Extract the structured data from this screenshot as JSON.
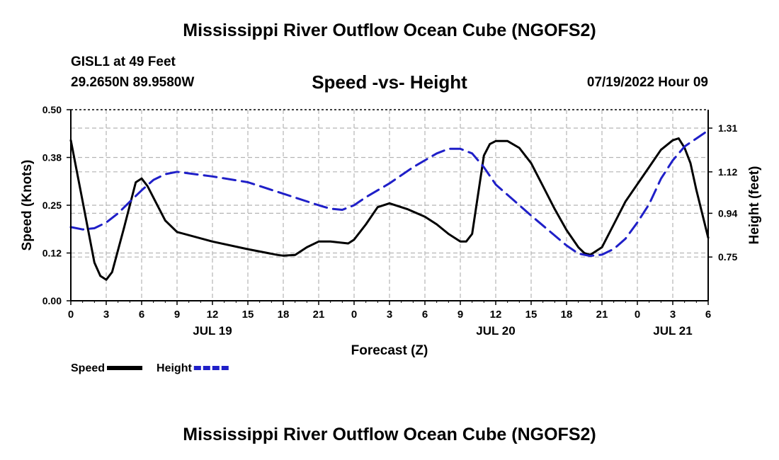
{
  "page": {
    "title": "Mississippi River Outflow Ocean Cube (NGOFS2)",
    "station_name": "GISL1 at 49 Feet",
    "station_coords": "29.2650N  89.9580W",
    "subtitle": "Speed -vs- Height",
    "datetime": "07/19/2022 Hour 09",
    "footer_title": "Mississippi River Outflow Ocean Cube (NGOFS2)"
  },
  "chart_data": {
    "type": "line",
    "xlabel": "Forecast (Z)",
    "ylabel": "Speed (Knots)",
    "y2label": "Height (feet)",
    "xlim": [
      0,
      54
    ],
    "ylim": [
      0,
      0.5
    ],
    "y2lim": [
      0.56,
      1.39
    ],
    "grid": true,
    "x_ticks": [
      0,
      3,
      6,
      9,
      12,
      15,
      18,
      21,
      24,
      27,
      30,
      33,
      36,
      39,
      42,
      45,
      48,
      51,
      54
    ],
    "x_tick_labels": [
      "0",
      "3",
      "6",
      "9",
      "12",
      "15",
      "18",
      "21",
      "0",
      "3",
      "6",
      "9",
      "12",
      "15",
      "18",
      "21",
      "0",
      "3",
      "6"
    ],
    "date_labels": [
      {
        "x": 12,
        "label": "JUL 19"
      },
      {
        "x": 36,
        "label": "JUL 20"
      },
      {
        "x": 51,
        "label": "JUL 21"
      }
    ],
    "y_ticks": [
      0,
      0.125,
      0.25,
      0.375,
      0.5
    ],
    "y_tick_labels": [
      "0.00",
      "0.12",
      "0.25",
      "0.38",
      "0.50"
    ],
    "y2_ticks": [
      0.75,
      0.94,
      1.12,
      1.31
    ],
    "y2_tick_labels": [
      "0.75",
      "0.94",
      "1.12",
      "1.31"
    ],
    "series": [
      {
        "name": "Speed",
        "axis": "left",
        "color": "#000000",
        "dash": "solid",
        "points": [
          [
            0,
            0.42
          ],
          [
            1,
            0.26
          ],
          [
            2,
            0.1
          ],
          [
            2.5,
            0.065
          ],
          [
            3,
            0.055
          ],
          [
            3.5,
            0.075
          ],
          [
            4.5,
            0.19
          ],
          [
            5.5,
            0.31
          ],
          [
            6,
            0.32
          ],
          [
            6.5,
            0.3
          ],
          [
            8,
            0.21
          ],
          [
            9,
            0.18
          ],
          [
            12,
            0.155
          ],
          [
            15,
            0.135
          ],
          [
            17.5,
            0.12
          ],
          [
            18,
            0.118
          ],
          [
            19,
            0.12
          ],
          [
            20,
            0.14
          ],
          [
            21,
            0.155
          ],
          [
            22,
            0.155
          ],
          [
            23.5,
            0.15
          ],
          [
            24,
            0.16
          ],
          [
            25,
            0.2
          ],
          [
            26,
            0.245
          ],
          [
            27,
            0.255
          ],
          [
            28.5,
            0.24
          ],
          [
            30,
            0.22
          ],
          [
            31,
            0.2
          ],
          [
            32,
            0.175
          ],
          [
            33,
            0.155
          ],
          [
            33.5,
            0.155
          ],
          [
            34,
            0.175
          ],
          [
            35,
            0.38
          ],
          [
            35.5,
            0.41
          ],
          [
            36,
            0.418
          ],
          [
            37,
            0.418
          ],
          [
            38,
            0.4
          ],
          [
            39,
            0.36
          ],
          [
            40,
            0.3
          ],
          [
            41,
            0.24
          ],
          [
            42,
            0.185
          ],
          [
            43,
            0.14
          ],
          [
            43.5,
            0.125
          ],
          [
            44,
            0.12
          ],
          [
            45,
            0.14
          ],
          [
            46,
            0.2
          ],
          [
            47,
            0.26
          ],
          [
            48,
            0.305
          ],
          [
            49,
            0.35
          ],
          [
            50,
            0.395
          ],
          [
            51,
            0.42
          ],
          [
            51.5,
            0.425
          ],
          [
            52,
            0.4
          ],
          [
            52.5,
            0.36
          ],
          [
            53,
            0.29
          ],
          [
            54,
            0.165
          ]
        ]
      },
      {
        "name": "Height",
        "axis": "right",
        "color": "#1f1fc8",
        "dash": "dashed",
        "points": [
          [
            0,
            0.88
          ],
          [
            1,
            0.87
          ],
          [
            2,
            0.875
          ],
          [
            3,
            0.9
          ],
          [
            4,
            0.94
          ],
          [
            5,
            0.99
          ],
          [
            6,
            1.04
          ],
          [
            7,
            1.085
          ],
          [
            8,
            1.11
          ],
          [
            9,
            1.12
          ],
          [
            12,
            1.1
          ],
          [
            15,
            1.075
          ],
          [
            18,
            1.025
          ],
          [
            21,
            0.975
          ],
          [
            22,
            0.96
          ],
          [
            23,
            0.955
          ],
          [
            24,
            0.975
          ],
          [
            25,
            1.01
          ],
          [
            27,
            1.07
          ],
          [
            29,
            1.14
          ],
          [
            31,
            1.2
          ],
          [
            32,
            1.22
          ],
          [
            33,
            1.22
          ],
          [
            34,
            1.2
          ],
          [
            35,
            1.14
          ],
          [
            36,
            1.065
          ],
          [
            39,
            0.93
          ],
          [
            42,
            0.8
          ],
          [
            43,
            0.765
          ],
          [
            44,
            0.755
          ],
          [
            45,
            0.76
          ],
          [
            46,
            0.785
          ],
          [
            47,
            0.83
          ],
          [
            48,
            0.9
          ],
          [
            49,
            0.98
          ],
          [
            50,
            1.09
          ],
          [
            51,
            1.17
          ],
          [
            52,
            1.23
          ],
          [
            53,
            1.265
          ],
          [
            54,
            1.3
          ]
        ]
      }
    ],
    "legend": [
      {
        "label": "Speed",
        "color": "#000000",
        "dash": "solid"
      },
      {
        "label": "Height",
        "color": "#1f1fc8",
        "dash": "dashed"
      }
    ]
  }
}
